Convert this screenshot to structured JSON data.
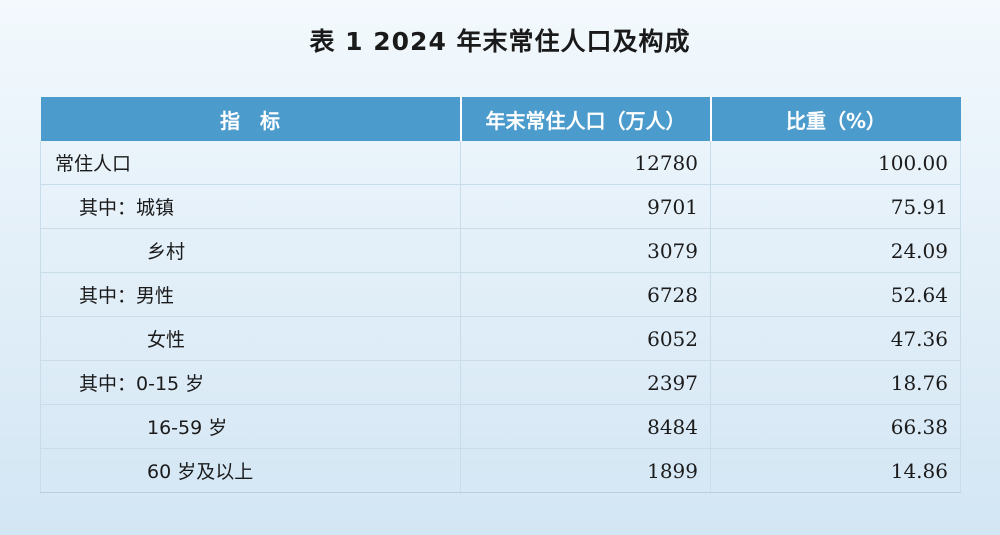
{
  "title": "表 1  2024 年末常住人口及构成",
  "table": {
    "headers": [
      "指　标",
      "年末常住人口（万人）",
      "比重（%）"
    ],
    "rows": [
      {
        "label": "常住人口",
        "population": "12780",
        "share": "100.00",
        "indent": 0
      },
      {
        "label": "其中：城镇",
        "population": "9701",
        "share": "75.91",
        "indent": 1
      },
      {
        "label": "乡村",
        "population": "3079",
        "share": "24.09",
        "indent": 2
      },
      {
        "label": "其中：男性",
        "population": "6728",
        "share": "52.64",
        "indent": 1
      },
      {
        "label": "女性",
        "population": "6052",
        "share": "47.36",
        "indent": 2
      },
      {
        "label": "其中：0-15 岁",
        "population": "2397",
        "share": "18.76",
        "indent": 1
      },
      {
        "label": "16-59 岁",
        "population": "8484",
        "share": "66.38",
        "indent": 2
      },
      {
        "label": "60 岁及以上",
        "population": "1899",
        "share": "14.86",
        "indent": 2
      }
    ]
  },
  "colors": {
    "header_bg": "#4b9bcc",
    "header_text": "#ffffff",
    "grid_line": "#c9dcea"
  }
}
